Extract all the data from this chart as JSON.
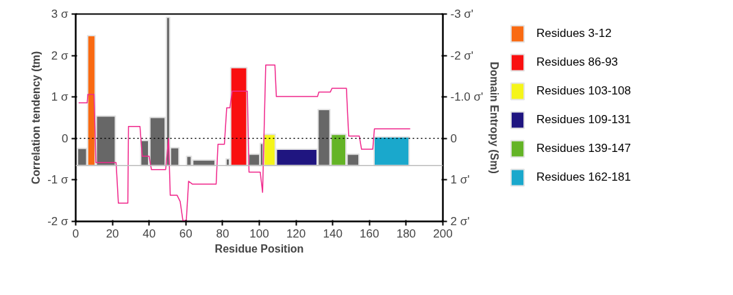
{
  "chart_data": {
    "type": "histogram",
    "xlabel": "Residue Position",
    "ylabel": "Correlation tendency (tm)",
    "y2label": "Domain Entropy (Sm)",
    "xlim": [
      0,
      200
    ],
    "xticks": [
      0,
      20,
      40,
      60,
      80,
      100,
      120,
      140,
      160,
      180,
      200
    ],
    "ylim": [
      -2,
      3
    ],
    "yticks": [
      {
        "value": -2,
        "label": "-2 σ"
      },
      {
        "value": -1,
        "label": "-1 σ"
      },
      0,
      {
        "value": 1,
        "label": "1 σ"
      },
      {
        "value": 2,
        "label": "2 σ"
      },
      {
        "value": 3,
        "label": "3 σ"
      }
    ],
    "y2lim": [
      2,
      -3
    ],
    "y2ticks": [
      {
        "value": 2,
        "label": "2 σ'"
      },
      {
        "value": 1,
        "label": "1 σ'"
      },
      0,
      {
        "value": -1,
        "label": "-1.0 σ'"
      },
      {
        "value": -2,
        "label": "-2 σ'"
      },
      {
        "value": -3,
        "label": "-3 σ'"
      }
    ],
    "grid": false,
    "legend": "right",
    "ref_lines": [
      {
        "axis": "y",
        "value": 0,
        "color": "#000000",
        "line_style": "dotted"
      },
      {
        "axis": "y",
        "value": -0.65,
        "color": "#bbbbbb",
        "line_style": "solid"
      }
    ],
    "series": [
      {
        "color": "#676767",
        "bins": [
          1,
          6,
          11.25,
          21.6,
          35.4,
          39.75,
          40.4,
          48.75,
          49.4,
          51.25,
          51.6,
          56.25,
          60.4,
          63,
          63.75,
          75.9,
          81.9,
          83.75,
          94.25,
          100.25,
          100.5,
          102.1,
          132,
          138.5,
          147.8,
          154.3
        ],
        "values": [
          0.41,
          null,
          1.19,
          null,
          0.6,
          null,
          1.16,
          null,
          3.57,
          null,
          0.43,
          null,
          0.22,
          null,
          0.13,
          null,
          0.16,
          null,
          0.27,
          null,
          0.53,
          null,
          1.35,
          null,
          0.27
        ],
        "base": [
          -0.65,
          null,
          -0.65,
          null,
          -0.65,
          null,
          -0.65,
          null,
          -0.65,
          null,
          -0.65,
          null,
          -0.65,
          null,
          -0.65,
          null,
          -0.65,
          null,
          -0.65,
          null,
          -0.65,
          null,
          -0.65,
          null,
          -0.65
        ]
      },
      {
        "name": "Residues 3-12",
        "color": "#f96a12",
        "bins": [
          6.5,
          10.6
        ],
        "values": [
          3.13
        ],
        "base": [
          -0.65
        ]
      },
      {
        "name": "Residues 86-93",
        "color": "#f91010",
        "bins": [
          84.4,
          93.25
        ],
        "values": [
          2.36
        ],
        "base": [
          -0.65
        ]
      },
      {
        "name": "Residues 103-108",
        "color": "#f5f51a",
        "bins": [
          102.5,
          108.7
        ],
        "values": [
          0.75
        ],
        "base": [
          -0.65
        ]
      },
      {
        "name": "Residues 109-131",
        "color": "#1f1580",
        "bins": [
          109.3,
          131.5
        ],
        "values": [
          0.39
        ],
        "base": [
          -0.65
        ]
      },
      {
        "name": "Residues 139-147",
        "color": "#64b426",
        "bins": [
          139.1,
          147.2
        ],
        "values": [
          0.75
        ],
        "base": [
          -0.65
        ]
      },
      {
        "name": "Residues 162-181",
        "color": "#1aa8cc",
        "bins": [
          162.5,
          181.6
        ],
        "values": [
          0.69
        ],
        "base": [
          -0.65
        ]
      },
      {
        "type": "line",
        "axis": "y2",
        "color": "#f0288c",
        "line_style": "solid",
        "marker": "none",
        "x": [
          1.6,
          6.25,
          6.6,
          10,
          11,
          22,
          23.25,
          28.4,
          28.75,
          35,
          36.25,
          40,
          41.25,
          49,
          50.6,
          51.5,
          55.25,
          56.9,
          58.4,
          60.25,
          61.5,
          63.5,
          76.5,
          77.5,
          81,
          82.25,
          84,
          85.25,
          93.5,
          94.4,
          100.5,
          101.8,
          103.5,
          108.5,
          109.3,
          131.7,
          132.45,
          138.7,
          139.6,
          147.45,
          148.7,
          154.45,
          155.7,
          161.8,
          162.7,
          182.2
        ],
        "values": [
          -0.86,
          -0.86,
          -1.06,
          -1.06,
          0.58,
          0.58,
          1.56,
          1.56,
          -0.29,
          -0.29,
          0.43,
          0.43,
          0.75,
          0.75,
          0,
          1.37,
          1.37,
          1.52,
          1.98,
          1.98,
          1.03,
          1.1,
          1.1,
          0.14,
          0.14,
          -0.74,
          -0.74,
          -1.14,
          -1.14,
          0.81,
          0.81,
          1.3,
          -1.77,
          -1.77,
          -1.01,
          -1.01,
          -1.12,
          -1.12,
          -1.21,
          -1.21,
          -0.06,
          -0.06,
          0.26,
          0.26,
          -0.23,
          -0.23
        ]
      }
    ]
  }
}
